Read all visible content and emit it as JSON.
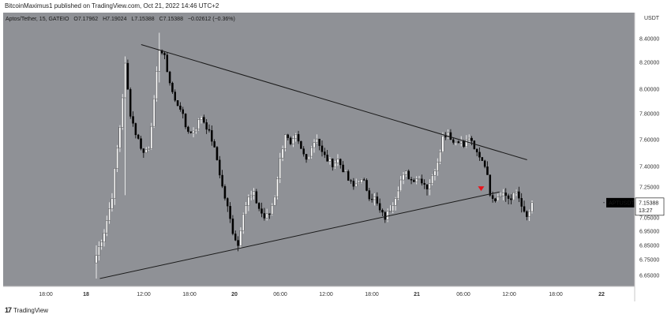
{
  "header": {
    "published": "BitcoinMaximus1 published on TradingView.com, Oct 21, 2022 14:46 UTC+2"
  },
  "footer": {
    "logo": "17",
    "brand": "TradingView"
  },
  "legend": {
    "symbol": "Aptos/Tether, 15, GATEIO",
    "o_label": "O",
    "o_value": "7.17962",
    "h_label": "H",
    "h_value": "7.19024",
    "l_label": "L",
    "l_value": "7.15388",
    "c_label": "C",
    "c_value": "7.15388",
    "change": "−0.02612 (−0.36%)"
  },
  "price_tag": {
    "symbol": "APTUSDT",
    "price": "7.15388",
    "countdown": "13:27"
  },
  "colors": {
    "plot_bg": "#8f9196",
    "axis_bg": "#ffffff",
    "bull": "#ffffff",
    "bear": "#000000",
    "trendline": "#1a1a1a",
    "marker": "#e8141c",
    "tag_bg": "#000000"
  },
  "chart_data": {
    "type": "candlestick",
    "title": "",
    "y_unit": "USDT",
    "ylim": [
      6.575,
      8.5
    ],
    "y_scale": "log",
    "y_ticks": [
      "8.40000",
      "8.20000",
      "8.00000",
      "7.80000",
      "7.60000",
      "7.40000",
      "7.25000",
      "7.10000",
      "7.05000",
      "6.95000",
      "6.85000",
      "6.75000",
      "6.65000"
    ],
    "x_ticks": [
      "18:00",
      "18",
      "12:00",
      "18:00",
      "20",
      "06:00",
      "12:00",
      "18:00",
      "21",
      "06:00",
      "12:00",
      "18:00",
      "22"
    ],
    "grid": false,
    "series": [
      {
        "type": "candlestick",
        "interval": "15",
        "keypoints_close": [
          [
            0,
            6.78
          ],
          [
            3,
            6.95
          ],
          [
            6,
            7.2
          ],
          [
            9,
            7.7
          ],
          [
            11,
            8.18
          ],
          [
            13,
            7.8
          ],
          [
            15,
            7.65
          ],
          [
            18,
            7.5
          ],
          [
            20,
            7.55
          ],
          [
            22,
            7.9
          ],
          [
            24,
            8.32
          ],
          [
            26,
            8.24
          ],
          [
            28,
            8.05
          ],
          [
            30,
            7.9
          ],
          [
            32,
            7.85
          ],
          [
            34,
            7.7
          ],
          [
            36,
            7.65
          ],
          [
            38,
            7.7
          ],
          [
            40,
            7.78
          ],
          [
            42,
            7.7
          ],
          [
            44,
            7.6
          ],
          [
            46,
            7.45
          ],
          [
            48,
            7.25
          ],
          [
            50,
            7.12
          ],
          [
            52,
            6.95
          ],
          [
            54,
            6.85
          ],
          [
            56,
            7.1
          ],
          [
            58,
            7.18
          ],
          [
            60,
            7.2
          ],
          [
            62,
            7.12
          ],
          [
            64,
            7.05
          ],
          [
            66,
            7.08
          ],
          [
            68,
            7.2
          ],
          [
            70,
            7.45
          ],
          [
            72,
            7.65
          ],
          [
            74,
            7.55
          ],
          [
            76,
            7.62
          ],
          [
            78,
            7.52
          ],
          [
            80,
            7.45
          ],
          [
            82,
            7.55
          ],
          [
            84,
            7.62
          ],
          [
            86,
            7.5
          ],
          [
            88,
            7.45
          ],
          [
            90,
            7.42
          ],
          [
            92,
            7.45
          ],
          [
            94,
            7.38
          ],
          [
            96,
            7.3
          ],
          [
            98,
            7.25
          ],
          [
            100,
            7.3
          ],
          [
            102,
            7.28
          ],
          [
            104,
            7.2
          ],
          [
            106,
            7.18
          ],
          [
            108,
            7.1
          ],
          [
            110,
            7.05
          ],
          [
            112,
            7.12
          ],
          [
            114,
            7.2
          ],
          [
            116,
            7.3
          ],
          [
            118,
            7.35
          ],
          [
            120,
            7.3
          ],
          [
            122,
            7.32
          ],
          [
            124,
            7.3
          ],
          [
            126,
            7.25
          ],
          [
            128,
            7.32
          ],
          [
            130,
            7.45
          ],
          [
            132,
            7.62
          ],
          [
            134,
            7.66
          ],
          [
            136,
            7.58
          ],
          [
            138,
            7.6
          ],
          [
            140,
            7.55
          ],
          [
            142,
            7.62
          ],
          [
            144,
            7.52
          ],
          [
            146,
            7.48
          ],
          [
            148,
            7.42
          ],
          [
            150,
            7.22
          ],
          [
            152,
            7.18
          ],
          [
            154,
            7.22
          ],
          [
            156,
            7.2
          ],
          [
            158,
            7.17
          ],
          [
            160,
            7.22
          ],
          [
            162,
            7.15
          ],
          [
            163,
            7.08
          ],
          [
            164,
            7.05
          ],
          [
            165,
            7.1
          ],
          [
            166,
            7.15
          ]
        ],
        "last_close": 7.15388
      },
      {
        "type": "trendline",
        "points": [
          [
            "18 12:00",
            8.35
          ],
          [
            "22 00:00",
            7.45
          ]
        ]
      },
      {
        "type": "trendline",
        "points": [
          [
            "18 03:00",
            6.63
          ],
          [
            "21 18:00",
            7.22
          ]
        ]
      }
    ],
    "annotations": [
      {
        "type": "marker",
        "shape": "triangle-down",
        "at": [
          "21 14:00",
          7.24
        ]
      }
    ]
  }
}
